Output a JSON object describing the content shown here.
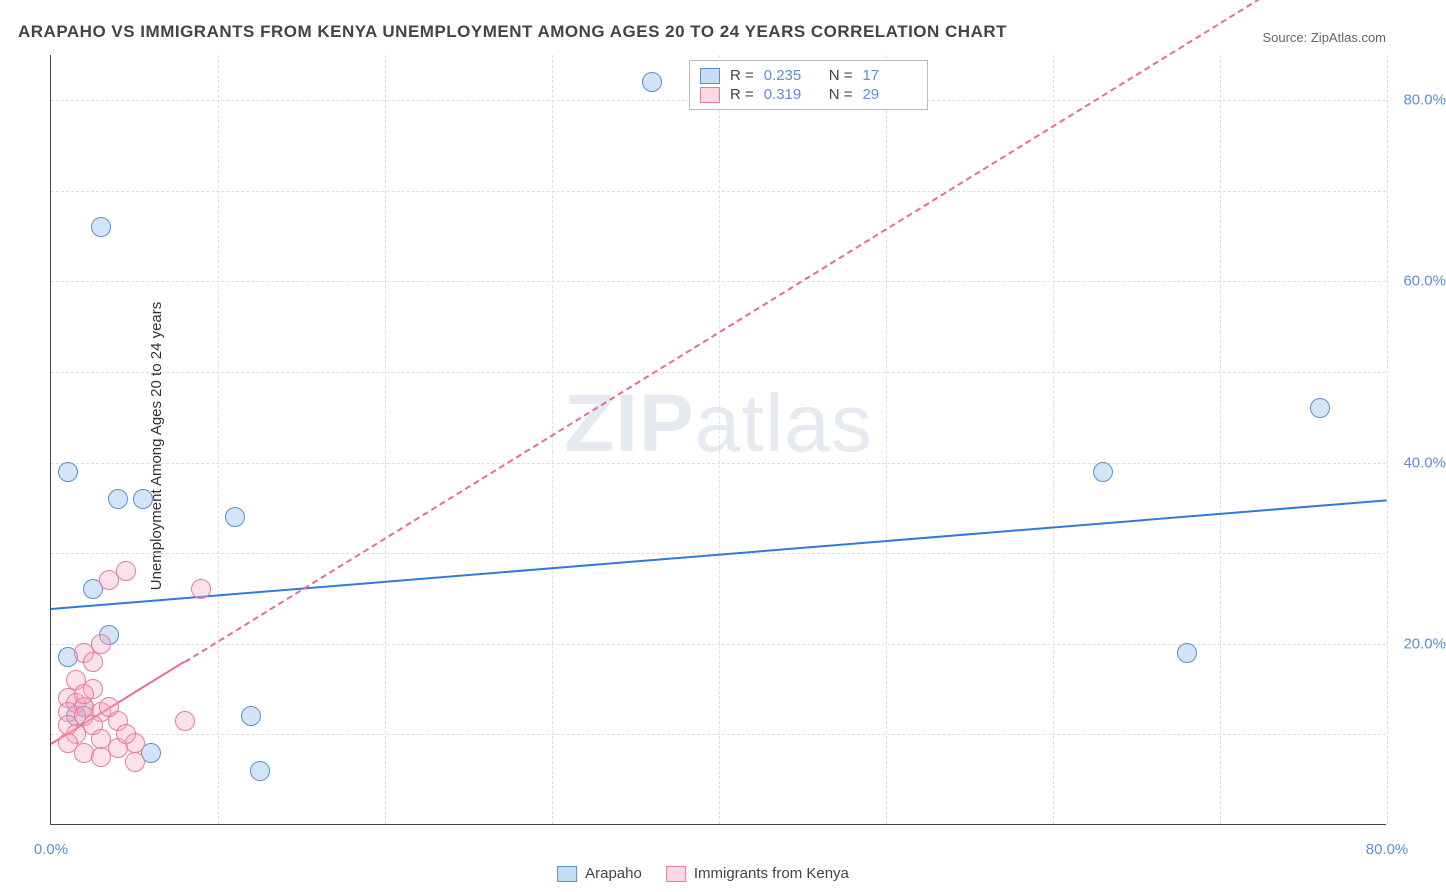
{
  "title": "ARAPAHO VS IMMIGRANTS FROM KENYA UNEMPLOYMENT AMONG AGES 20 TO 24 YEARS CORRELATION CHART",
  "source": "Source: ZipAtlas.com",
  "y_axis_label": "Unemployment Among Ages 20 to 24 years",
  "watermark": {
    "zip": "ZIP",
    "atlas": "atlas"
  },
  "chart": {
    "type": "scatter",
    "xlim": [
      0,
      80
    ],
    "ylim": [
      0,
      85
    ],
    "x_ticks": [
      {
        "v": 0,
        "label": "0.0%"
      },
      {
        "v": 80,
        "label": "80.0%"
      }
    ],
    "y_ticks": [
      {
        "v": 20,
        "label": "20.0%"
      },
      {
        "v": 40,
        "label": "40.0%"
      },
      {
        "v": 60,
        "label": "60.0%"
      },
      {
        "v": 80,
        "label": "80.0%"
      }
    ],
    "grid_x_steps": [
      10,
      20,
      30,
      40,
      50,
      60,
      70,
      80
    ],
    "grid_y_steps": [
      10,
      20,
      30,
      40,
      50,
      60,
      70,
      80
    ],
    "marker_radius": 10,
    "colors": {
      "blue_stroke": "#5b8fd6",
      "blue_fill": "rgba(127,179,226,0.35)",
      "pink_stroke": "#e77ba0",
      "pink_fill": "rgba(247,168,190,0.35)",
      "grid": "#dddddd",
      "axis": "#444444",
      "trend_blue": "#2f7bd9",
      "trend_pink": "#e86a9a"
    },
    "series": [
      {
        "name": "Arapaho",
        "color": "blue",
        "stats": {
          "R": "0.235",
          "N": "17"
        },
        "points": [
          {
            "x": 3,
            "y": 66
          },
          {
            "x": 1,
            "y": 39
          },
          {
            "x": 4,
            "y": 36
          },
          {
            "x": 5.5,
            "y": 36
          },
          {
            "x": 11,
            "y": 34
          },
          {
            "x": 2.5,
            "y": 26
          },
          {
            "x": 3.5,
            "y": 21
          },
          {
            "x": 1,
            "y": 18.5
          },
          {
            "x": 2,
            "y": 13
          },
          {
            "x": 12,
            "y": 12
          },
          {
            "x": 6,
            "y": 8
          },
          {
            "x": 12.5,
            "y": 6
          },
          {
            "x": 1.5,
            "y": 12
          },
          {
            "x": 68,
            "y": 19
          },
          {
            "x": 63,
            "y": 39
          },
          {
            "x": 76,
            "y": 46
          },
          {
            "x": 36,
            "y": 82
          }
        ],
        "trend": {
          "x1": 0,
          "y1": 24,
          "x2": 80,
          "y2": 36,
          "width": 2.5,
          "dashed": false,
          "color": "#2f7bd9"
        }
      },
      {
        "name": "Immigrants from Kenya",
        "color": "pink",
        "stats": {
          "R": "0.319",
          "N": "29"
        },
        "points": [
          {
            "x": 4.5,
            "y": 28
          },
          {
            "x": 3.5,
            "y": 27
          },
          {
            "x": 9,
            "y": 26
          },
          {
            "x": 3,
            "y": 20
          },
          {
            "x": 2,
            "y": 19
          },
          {
            "x": 2.5,
            "y": 15
          },
          {
            "x": 1,
            "y": 14
          },
          {
            "x": 1.5,
            "y": 13.5
          },
          {
            "x": 2,
            "y": 13
          },
          {
            "x": 3,
            "y": 12.5
          },
          {
            "x": 1,
            "y": 12.5
          },
          {
            "x": 2,
            "y": 12
          },
          {
            "x": 4,
            "y": 11.5
          },
          {
            "x": 2.5,
            "y": 11
          },
          {
            "x": 8,
            "y": 11.5
          },
          {
            "x": 1.5,
            "y": 10
          },
          {
            "x": 3,
            "y": 9.5
          },
          {
            "x": 5,
            "y": 9
          },
          {
            "x": 4,
            "y": 8.5
          },
          {
            "x": 2,
            "y": 8
          },
          {
            "x": 3,
            "y": 7.5
          },
          {
            "x": 5,
            "y": 7
          },
          {
            "x": 1,
            "y": 11
          },
          {
            "x": 1.5,
            "y": 16
          },
          {
            "x": 2.5,
            "y": 18
          },
          {
            "x": 1,
            "y": 9
          },
          {
            "x": 2,
            "y": 14.5
          },
          {
            "x": 3.5,
            "y": 13
          },
          {
            "x": 4.5,
            "y": 10
          }
        ],
        "trend": {
          "x1": 0,
          "y1": 9,
          "x2": 80,
          "y2": 100,
          "width": 2,
          "dashed": true,
          "color": "#e86a9a",
          "solid_until_x": 8
        }
      }
    ]
  },
  "legend": {
    "items": [
      {
        "color": "blue",
        "label": "Arapaho"
      },
      {
        "color": "pink",
        "label": "Immigrants from Kenya"
      }
    ]
  }
}
